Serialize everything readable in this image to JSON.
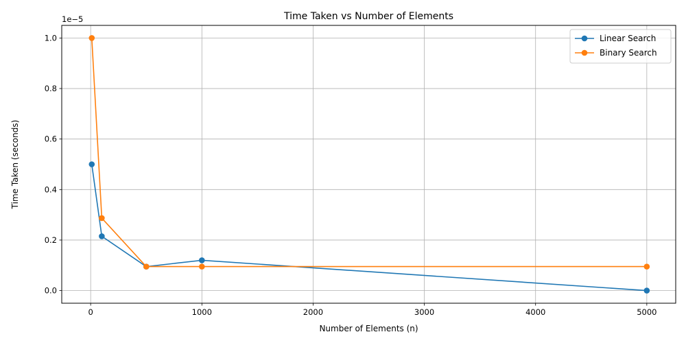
{
  "chart_data": {
    "type": "line",
    "title": "Time Taken vs Number of Elements",
    "xlabel": "Number of Elements (n)",
    "ylabel": "Time Taken (seconds)",
    "y_scale_label": "1e−5",
    "xlim": [
      -260,
      5260
    ],
    "ylim": [
      -0.05,
      1.05
    ],
    "x_ticks": [
      0,
      1000,
      2000,
      3000,
      4000,
      5000
    ],
    "x_tick_labels": [
      "0",
      "1000",
      "2000",
      "3000",
      "4000",
      "5000"
    ],
    "y_ticks": [
      0.0,
      0.2,
      0.4,
      0.6,
      0.8,
      1.0
    ],
    "y_tick_labels": [
      "0.0",
      "0.2",
      "0.4",
      "0.6",
      "0.8",
      "1.0"
    ],
    "grid": true,
    "legend_position": "top-right",
    "x": [
      10,
      100,
      500,
      1000,
      5000
    ],
    "series": [
      {
        "name": "Linear Search",
        "color": "#1f77b4",
        "marker": "circle",
        "values": [
          0.5,
          0.215,
          0.095,
          0.12,
          0.0
        ]
      },
      {
        "name": "Binary Search",
        "color": "#ff7f0e",
        "marker": "circle",
        "values": [
          1.0,
          0.287,
          0.095,
          0.095,
          0.095
        ]
      }
    ]
  }
}
